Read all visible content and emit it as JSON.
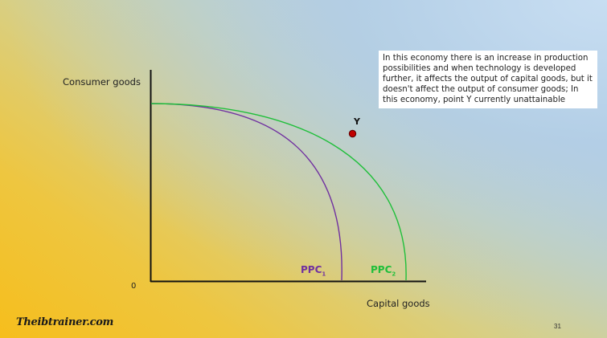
{
  "note": {
    "text": "In this economy there is an increase in production possibilities and when technology is developed further, it affects the output of capital goods, but it doesn't affect the output of consumer goods; In this economy, point Y currently unattainable"
  },
  "axes": {
    "y_label": "Consumer goods",
    "x_label": "Capital goods",
    "origin": "0"
  },
  "curves": {
    "ppc1": {
      "name": "PPC",
      "subscript": "1",
      "color": "#7030a0"
    },
    "ppc2": {
      "name": "PPC",
      "subscript": "2",
      "color": "#1fbf3a"
    }
  },
  "point": {
    "label": "Y",
    "color": "#c00000"
  },
  "footer": {
    "logo": "Theibtrainer.com",
    "page_number": "31"
  }
}
